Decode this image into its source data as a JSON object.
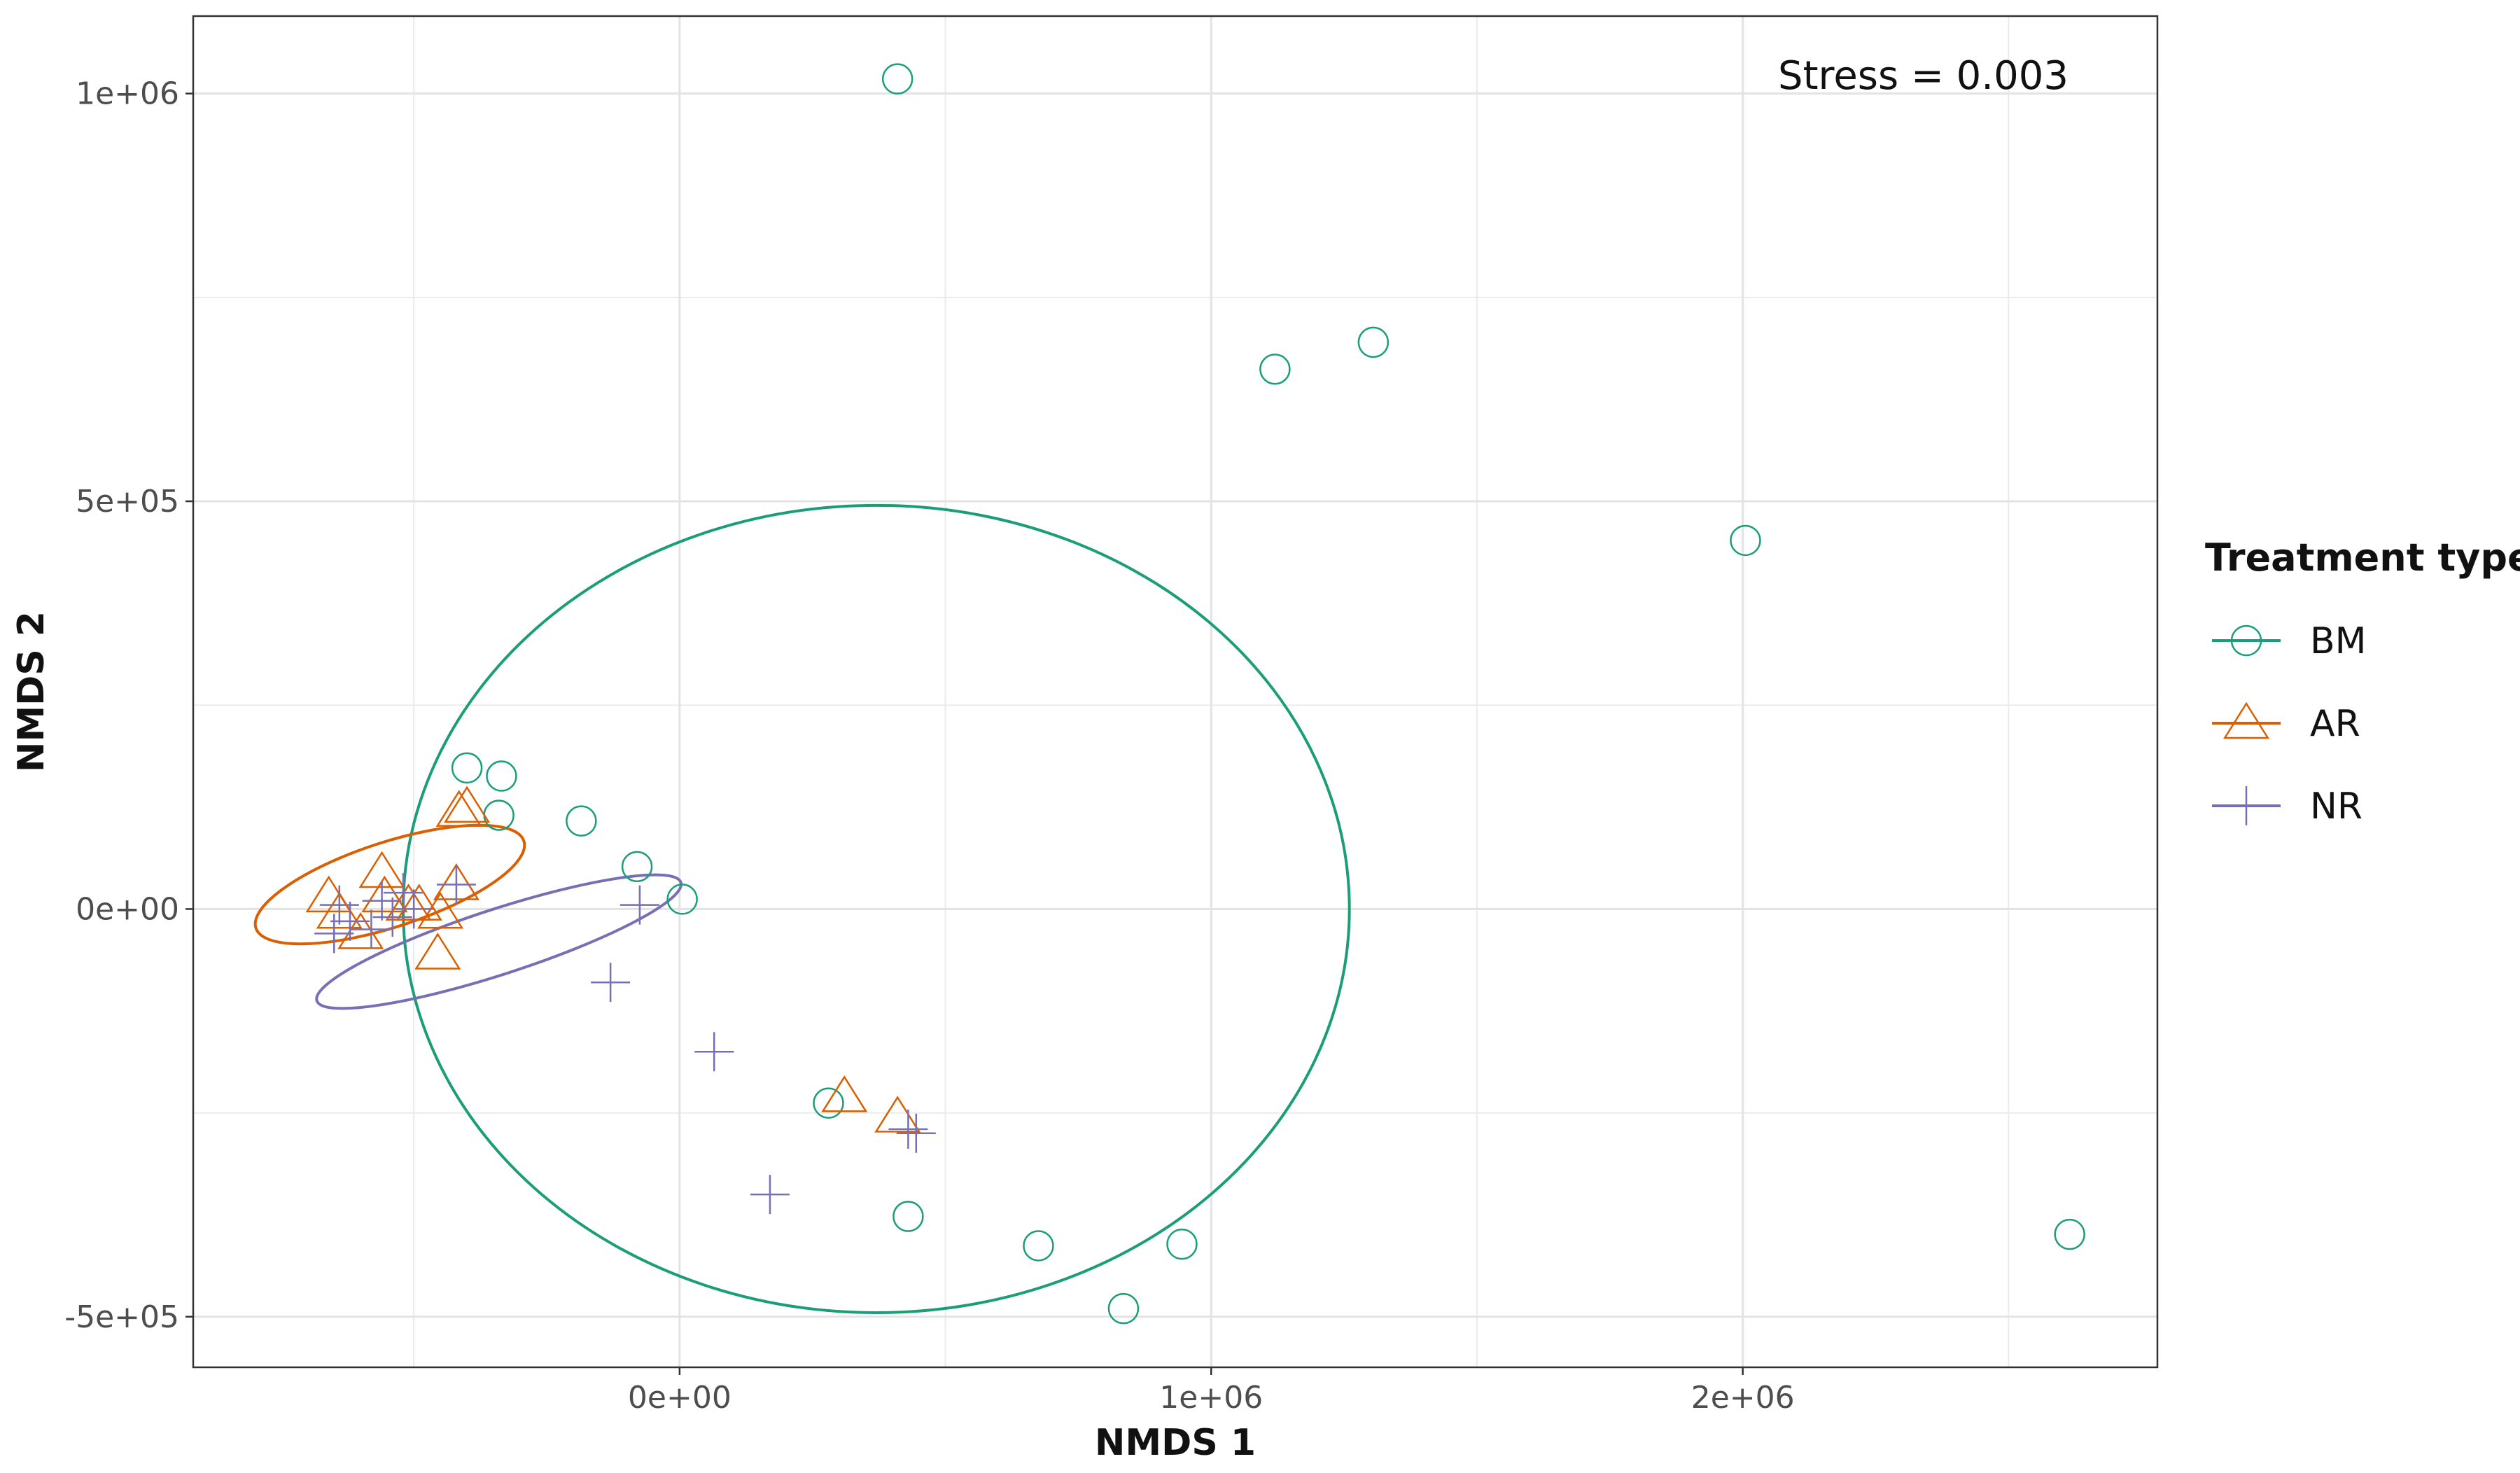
{
  "chart_data": {
    "type": "scatter",
    "title": "",
    "xlabel": "NMDS 1",
    "ylabel": "NMDS 2",
    "xlim": [
      -915000,
      2780000
    ],
    "ylim": [
      -562000,
      1095000
    ],
    "x_ticks": [
      0,
      1000000,
      2000000
    ],
    "x_tick_labels": [
      "0e+00",
      "1e+06",
      "2e+06"
    ],
    "y_ticks": [
      -500000,
      0,
      500000,
      1000000
    ],
    "y_tick_labels": [
      "-5e+05",
      "0e+00",
      "5e+05",
      "1e+06"
    ],
    "grid": true,
    "annotation": "Stress = 0.003",
    "legend": {
      "title": "Treatment type",
      "position": "right",
      "entries": [
        "BM",
        "AR",
        "NR"
      ]
    },
    "series": [
      {
        "name": "BM",
        "color": "#1b9e77",
        "marker": "circle",
        "points": [
          [
            410000,
            1018000
          ],
          [
            1120000,
            662000
          ],
          [
            1305000,
            695000
          ],
          [
            2005000,
            452000
          ],
          [
            -400000,
            173000
          ],
          [
            -335000,
            163000
          ],
          [
            -340000,
            115000
          ],
          [
            -185000,
            108000
          ],
          [
            -80000,
            52000
          ],
          [
            5000,
            12000
          ],
          [
            280000,
            -238000
          ],
          [
            430000,
            -377000
          ],
          [
            675000,
            -413000
          ],
          [
            945000,
            -411000
          ],
          [
            835000,
            -490000
          ],
          [
            2615000,
            -399000
          ]
        ],
        "ellipse": {
          "cx": 370000,
          "cy": 0,
          "rx": 890000,
          "ry": 495000,
          "angle": 0
        }
      },
      {
        "name": "AR",
        "color": "#d95f02",
        "marker": "triangle",
        "points": [
          [
            -415000,
            120000
          ],
          [
            -400000,
            125000
          ],
          [
            -660000,
            15000
          ],
          [
            -640000,
            -5000
          ],
          [
            -560000,
            45000
          ],
          [
            -555000,
            15000
          ],
          [
            -510000,
            5000
          ],
          [
            -490000,
            5000
          ],
          [
            -450000,
            -5000
          ],
          [
            -420000,
            30000
          ],
          [
            -600000,
            -30000
          ],
          [
            -455000,
            -55000
          ],
          [
            310000,
            -230000
          ],
          [
            410000,
            -255000
          ]
        ],
        "ellipse": {
          "cx": -545000,
          "cy": 30000,
          "rx": 265000,
          "ry": 52000,
          "angle": -18
        }
      },
      {
        "name": "NR",
        "color": "#7570b3",
        "marker": "plus",
        "points": [
          [
            -640000,
            5000
          ],
          [
            -650000,
            -30000
          ],
          [
            -620000,
            -15000
          ],
          [
            -580000,
            -25000
          ],
          [
            -560000,
            10000
          ],
          [
            -540000,
            -10000
          ],
          [
            -520000,
            20000
          ],
          [
            -500000,
            0
          ],
          [
            -420000,
            30000
          ],
          [
            -130000,
            -90000
          ],
          [
            -75000,
            5000
          ],
          [
            65000,
            -175000
          ],
          [
            170000,
            -350000
          ],
          [
            430000,
            -270000
          ],
          [
            445000,
            -275000
          ]
        ],
        "ellipse": {
          "cx": -340000,
          "cy": -40000,
          "rx": 360000,
          "ry": 40000,
          "angle": -18
        }
      }
    ]
  }
}
